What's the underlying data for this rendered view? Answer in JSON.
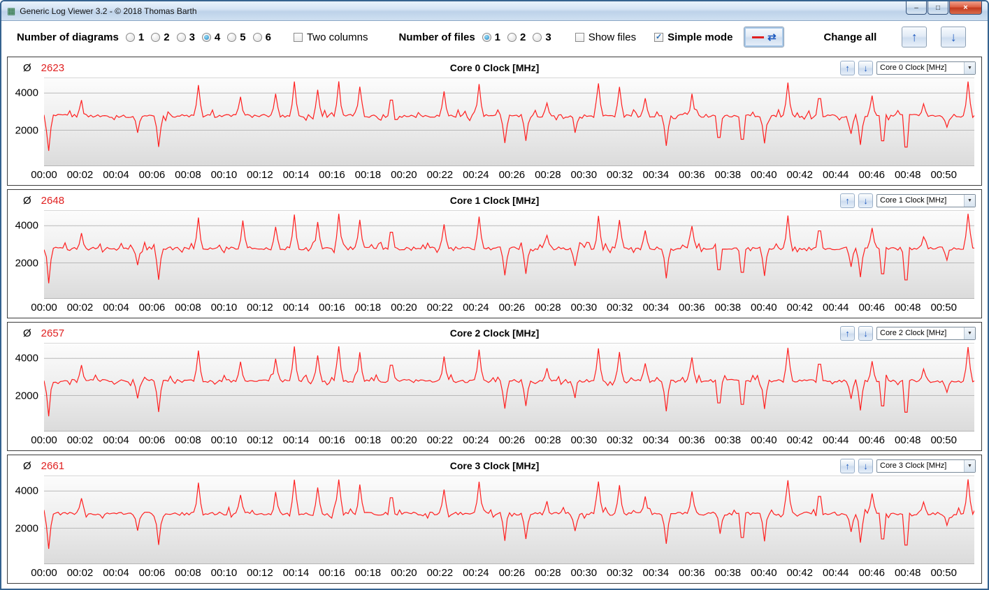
{
  "window": {
    "title": "Generic Log Viewer 3.2 - © 2018 Thomas Barth"
  },
  "icons": {
    "app_logo": "▦",
    "minimize": "–",
    "maximize": "□",
    "close": "×",
    "avg_symbol": "Ø",
    "up_arrow": "↑",
    "down_arrow": "↓",
    "swap": "⇄",
    "combo_caret": "▼"
  },
  "toolbar": {
    "diagrams_label": "Number of diagrams",
    "diagram_options": [
      "1",
      "2",
      "3",
      "4",
      "5",
      "6"
    ],
    "diagrams_selected": "4",
    "two_columns_label": "Two columns",
    "two_columns_checked": false,
    "files_label": "Number of files",
    "file_options": [
      "1",
      "2",
      "3"
    ],
    "files_selected": "1",
    "show_files_label": "Show files",
    "show_files_checked": false,
    "simple_mode_label": "Simple mode",
    "simple_mode_checked": true,
    "change_all_label": "Change all"
  },
  "axis": {
    "x_ticks": [
      "00:00",
      "00:02",
      "00:04",
      "00:06",
      "00:08",
      "00:10",
      "00:12",
      "00:14",
      "00:16",
      "00:18",
      "00:20",
      "00:22",
      "00:24",
      "00:26",
      "00:28",
      "00:30",
      "00:32",
      "00:34",
      "00:36",
      "00:38",
      "00:40",
      "00:42",
      "00:44",
      "00:46",
      "00:48",
      "00:50"
    ],
    "x_tick_step_min": 2,
    "x_range": [
      0,
      51.7
    ],
    "ylim": [
      100,
      4800
    ],
    "y_ticks": [
      2000,
      4000
    ],
    "grid_on": true,
    "grid_color": "#b9b9b9",
    "line_color": "#ff1f1f"
  },
  "chart_data": [
    {
      "type": "line",
      "title": "Core 0 Clock [MHz]",
      "selector_value": "Core 0 Clock [MHz]",
      "average": 2623,
      "baseline": 2770,
      "noise": 85,
      "seed": 1,
      "spikes": [
        [
          2.1,
          3620
        ],
        [
          8.6,
          4430
        ],
        [
          10.9,
          3800
        ],
        [
          12.9,
          3960
        ],
        [
          13.9,
          4620
        ],
        [
          15.2,
          4180
        ],
        [
          16.4,
          4630
        ],
        [
          17.5,
          4340
        ],
        [
          19.3,
          3620
        ],
        [
          22.2,
          4090
        ],
        [
          24.2,
          4480
        ],
        [
          27.9,
          3460
        ],
        [
          30.8,
          4520
        ],
        [
          32.0,
          4330
        ],
        [
          33.4,
          3720
        ],
        [
          36.0,
          3960
        ],
        [
          41.3,
          4560
        ],
        [
          43.1,
          3700
        ],
        [
          46.0,
          3860
        ],
        [
          48.9,
          3420
        ],
        [
          51.3,
          4620
        ]
      ],
      "dips": [
        [
          0.25,
          890
        ],
        [
          5.2,
          1860
        ],
        [
          6.35,
          1100
        ],
        [
          25.6,
          1310
        ],
        [
          26.8,
          1430
        ],
        [
          29.5,
          1860
        ],
        [
          34.6,
          1160
        ],
        [
          37.5,
          1610
        ],
        [
          38.8,
          1510
        ],
        [
          40.0,
          1290
        ],
        [
          44.9,
          1810
        ],
        [
          45.4,
          1210
        ],
        [
          46.6,
          1430
        ],
        [
          47.9,
          1090
        ],
        [
          50.2,
          2160
        ]
      ]
    },
    {
      "type": "line",
      "title": "Core 1 Clock [MHz]",
      "selector_value": "Core 1 Clock [MHz]",
      "average": 2648,
      "baseline": 2780,
      "noise": 85,
      "seed": 2,
      "spikes": [
        [
          2.1,
          3600
        ],
        [
          8.6,
          4440
        ],
        [
          11.0,
          4280
        ],
        [
          12.9,
          3940
        ],
        [
          13.9,
          4600
        ],
        [
          15.2,
          4200
        ],
        [
          16.4,
          4640
        ],
        [
          17.5,
          4320
        ],
        [
          19.3,
          3650
        ],
        [
          22.2,
          4070
        ],
        [
          24.2,
          4490
        ],
        [
          27.9,
          3480
        ],
        [
          30.8,
          4530
        ],
        [
          32.0,
          4310
        ],
        [
          33.4,
          3740
        ],
        [
          36.0,
          3980
        ],
        [
          41.3,
          4550
        ],
        [
          43.1,
          3720
        ],
        [
          46.0,
          3880
        ],
        [
          48.9,
          3400
        ],
        [
          51.3,
          4640
        ]
      ],
      "dips": [
        [
          0.25,
          900
        ],
        [
          5.2,
          1880
        ],
        [
          6.35,
          1090
        ],
        [
          25.6,
          1330
        ],
        [
          26.8,
          1410
        ],
        [
          29.5,
          1840
        ],
        [
          34.6,
          1170
        ],
        [
          37.5,
          1630
        ],
        [
          38.8,
          1490
        ],
        [
          40.0,
          1300
        ],
        [
          44.9,
          1790
        ],
        [
          45.4,
          1230
        ],
        [
          46.6,
          1410
        ],
        [
          47.9,
          1080
        ],
        [
          50.2,
          2140
        ]
      ]
    },
    {
      "type": "line",
      "title": "Core 2 Clock [MHz]",
      "selector_value": "Core 2 Clock [MHz]",
      "average": 2657,
      "baseline": 2785,
      "noise": 85,
      "seed": 3,
      "spikes": [
        [
          2.1,
          3640
        ],
        [
          8.6,
          4420
        ],
        [
          10.9,
          3820
        ],
        [
          12.9,
          3980
        ],
        [
          13.9,
          4640
        ],
        [
          15.2,
          4160
        ],
        [
          16.4,
          4650
        ],
        [
          17.5,
          4330
        ],
        [
          19.3,
          3630
        ],
        [
          22.2,
          4100
        ],
        [
          24.2,
          4470
        ],
        [
          27.9,
          3470
        ],
        [
          30.8,
          4540
        ],
        [
          32.0,
          4340
        ],
        [
          33.4,
          3730
        ],
        [
          36.0,
          4050
        ],
        [
          41.3,
          4570
        ],
        [
          43.1,
          3690
        ],
        [
          46.0,
          3850
        ],
        [
          48.9,
          3430
        ],
        [
          51.3,
          4610
        ]
      ],
      "dips": [
        [
          0.25,
          880
        ],
        [
          5.2,
          1850
        ],
        [
          6.35,
          1110
        ],
        [
          25.6,
          1300
        ],
        [
          26.8,
          1440
        ],
        [
          29.5,
          1870
        ],
        [
          34.6,
          1150
        ],
        [
          37.5,
          1600
        ],
        [
          38.8,
          1520
        ],
        [
          40.0,
          1280
        ],
        [
          44.9,
          1820
        ],
        [
          45.4,
          1200
        ],
        [
          46.6,
          1440
        ],
        [
          47.9,
          1100
        ],
        [
          50.2,
          2170
        ]
      ]
    },
    {
      "type": "line",
      "title": "Core 3 Clock [MHz]",
      "selector_value": "Core 3 Clock [MHz]",
      "average": 2661,
      "baseline": 2785,
      "noise": 85,
      "seed": 4,
      "spikes": [
        [
          2.1,
          3610
        ],
        [
          8.6,
          4450
        ],
        [
          10.9,
          3790
        ],
        [
          12.9,
          3950
        ],
        [
          13.9,
          4610
        ],
        [
          15.2,
          4190
        ],
        [
          16.4,
          4620
        ],
        [
          17.5,
          4350
        ],
        [
          19.3,
          3640
        ],
        [
          22.2,
          4080
        ],
        [
          24.2,
          4500
        ],
        [
          27.9,
          3450
        ],
        [
          30.8,
          4510
        ],
        [
          32.0,
          4320
        ],
        [
          33.4,
          3710
        ],
        [
          36.0,
          3970
        ],
        [
          41.3,
          4580
        ],
        [
          43.1,
          3710
        ],
        [
          46.0,
          3870
        ],
        [
          48.9,
          3410
        ],
        [
          51.3,
          4630
        ]
      ],
      "dips": [
        [
          0.25,
          890
        ],
        [
          5.2,
          1870
        ],
        [
          6.35,
          1100
        ],
        [
          25.6,
          1320
        ],
        [
          26.8,
          1420
        ],
        [
          29.5,
          1850
        ],
        [
          34.6,
          1160
        ],
        [
          37.6,
          1700
        ],
        [
          38.8,
          1500
        ],
        [
          40.0,
          1290
        ],
        [
          44.9,
          1800
        ],
        [
          45.4,
          1220
        ],
        [
          46.6,
          1420
        ],
        [
          47.9,
          1090
        ],
        [
          50.2,
          2150
        ]
      ]
    }
  ]
}
